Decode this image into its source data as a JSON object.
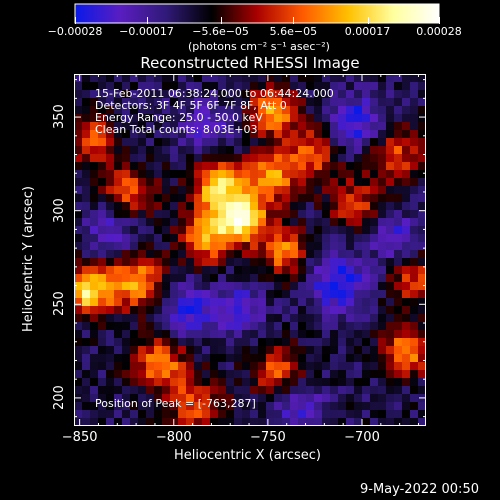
{
  "chart_data": {
    "type": "heatmap",
    "title": "Reconstructed RHESSI Image",
    "xlabel": "Heliocentric X (arcsec)",
    "ylabel": "Heliocentric Y (arcsec)",
    "xlim": [
      -853,
      -666
    ],
    "ylim": [
      185,
      373
    ],
    "x_ticks": [
      "−850",
      "−800",
      "−750",
      "−700"
    ],
    "x_tick_values": [
      -850,
      -800,
      -750,
      -700
    ],
    "y_ticks": [
      "200",
      "250",
      "300",
      "350"
    ],
    "y_tick_values": [
      200,
      250,
      300,
      350
    ],
    "colorbar": {
      "label": "(photons cm⁻² s⁻¹ asec⁻²)",
      "ticks": [
        "−0.00028",
        "−0.00017",
        "−5.6e−05",
        "5.6e−05",
        "0.00017",
        "0.00028"
      ],
      "tick_values": [
        -0.00028,
        -0.00017,
        -5.6e-05,
        5.6e-05,
        0.00017,
        0.00028
      ],
      "range": [
        -0.00028,
        0.00028
      ],
      "colormap": [
        "#0a1ae8",
        "#5a1dc0",
        "#301a78",
        "#000000",
        "#aa0000",
        "#ff5a00",
        "#ffc000",
        "#ffffa0",
        "#ffffff"
      ]
    },
    "annotations": {
      "time_range": "15-Feb-2011 06:38:24.000 to 06:44:24.000",
      "detectors": "Detectors: 3F 4F 5F 6F 7F 8F, Att 0",
      "energy": "Energy Range: 25.0 - 50.0 keV",
      "clean": "Clean     Total counts: 8.03E+03",
      "peak": "Position of Peak = [-763,287]"
    },
    "peak_position": [
      -763,
      287
    ],
    "sources": [
      {
        "x": -763,
        "y": 296,
        "intensity": 0.00028,
        "sigma": 9
      },
      {
        "x": -776,
        "y": 313,
        "intensity": 0.00023,
        "sigma": 10
      },
      {
        "x": -748,
        "y": 318,
        "intensity": 0.00018,
        "sigma": 9
      },
      {
        "x": -782,
        "y": 286,
        "intensity": 0.00019,
        "sigma": 10
      },
      {
        "x": -741,
        "y": 278,
        "intensity": 0.00017,
        "sigma": 9
      },
      {
        "x": -747,
        "y": 353,
        "intensity": 0.00021,
        "sigma": 9
      },
      {
        "x": -823,
        "y": 310,
        "intensity": 0.00013,
        "sigma": 10
      },
      {
        "x": -845,
        "y": 257,
        "intensity": 0.00026,
        "sigma": 9
      },
      {
        "x": -820,
        "y": 262,
        "intensity": 0.0002,
        "sigma": 10
      },
      {
        "x": -807,
        "y": 218,
        "intensity": 0.00017,
        "sigma": 10
      },
      {
        "x": -788,
        "y": 196,
        "intensity": 0.00014,
        "sigma": 10
      },
      {
        "x": -744,
        "y": 214,
        "intensity": 0.00014,
        "sigma": 10
      },
      {
        "x": -727,
        "y": 330,
        "intensity": 0.00014,
        "sigma": 10
      },
      {
        "x": -703,
        "y": 303,
        "intensity": 0.00011,
        "sigma": 10
      },
      {
        "x": -682,
        "y": 330,
        "intensity": 0.00012,
        "sigma": 10
      },
      {
        "x": -676,
        "y": 225,
        "intensity": 0.00018,
        "sigma": 9
      },
      {
        "x": -672,
        "y": 262,
        "intensity": 0.00012,
        "sigma": 9
      },
      {
        "x": -844,
        "y": 337,
        "intensity": 0.00014,
        "sigma": 9
      },
      {
        "x": -703,
        "y": 347,
        "intensity": -0.00016,
        "sigma": 10
      },
      {
        "x": -713,
        "y": 262,
        "intensity": -0.00017,
        "sigma": 11
      },
      {
        "x": -792,
        "y": 247,
        "intensity": -0.00015,
        "sigma": 10
      },
      {
        "x": -765,
        "y": 247,
        "intensity": -0.00014,
        "sigma": 9
      },
      {
        "x": -833,
        "y": 289,
        "intensity": -0.00012,
        "sigma": 9
      },
      {
        "x": -735,
        "y": 196,
        "intensity": -0.00013,
        "sigma": 10
      },
      {
        "x": -683,
        "y": 286,
        "intensity": -0.00012,
        "sigma": 9
      },
      {
        "x": -783,
        "y": 345,
        "intensity": -0.0001,
        "sigma": 10
      }
    ]
  },
  "timestamp": "9-May-2022 00:50"
}
